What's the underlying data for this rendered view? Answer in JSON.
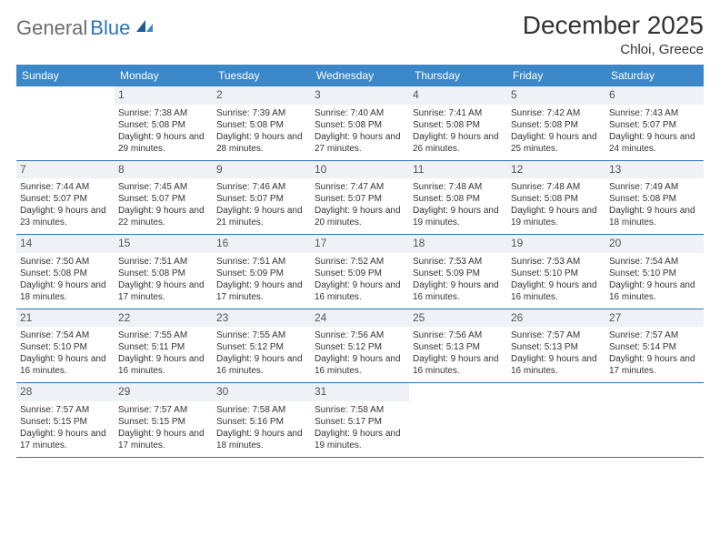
{
  "logo": {
    "part1": "General",
    "part2": "Blue"
  },
  "title": "December 2025",
  "location": "Chloi, Greece",
  "colors": {
    "header_bg": "#3b87c8",
    "header_text": "#ffffff",
    "daynum_bg": "#eef2f6",
    "rule": "#2f72b6",
    "logo_gray": "#6b6b6b",
    "logo_blue": "#2f72b6"
  },
  "weekdays": [
    "Sunday",
    "Monday",
    "Tuesday",
    "Wednesday",
    "Thursday",
    "Friday",
    "Saturday"
  ],
  "weeks": [
    [
      {
        "n": "",
        "sr": "",
        "ss": "",
        "dl": ""
      },
      {
        "n": "1",
        "sr": "Sunrise: 7:38 AM",
        "ss": "Sunset: 5:08 PM",
        "dl": "Daylight: 9 hours and 29 minutes."
      },
      {
        "n": "2",
        "sr": "Sunrise: 7:39 AM",
        "ss": "Sunset: 5:08 PM",
        "dl": "Daylight: 9 hours and 28 minutes."
      },
      {
        "n": "3",
        "sr": "Sunrise: 7:40 AM",
        "ss": "Sunset: 5:08 PM",
        "dl": "Daylight: 9 hours and 27 minutes."
      },
      {
        "n": "4",
        "sr": "Sunrise: 7:41 AM",
        "ss": "Sunset: 5:08 PM",
        "dl": "Daylight: 9 hours and 26 minutes."
      },
      {
        "n": "5",
        "sr": "Sunrise: 7:42 AM",
        "ss": "Sunset: 5:08 PM",
        "dl": "Daylight: 9 hours and 25 minutes."
      },
      {
        "n": "6",
        "sr": "Sunrise: 7:43 AM",
        "ss": "Sunset: 5:07 PM",
        "dl": "Daylight: 9 hours and 24 minutes."
      }
    ],
    [
      {
        "n": "7",
        "sr": "Sunrise: 7:44 AM",
        "ss": "Sunset: 5:07 PM",
        "dl": "Daylight: 9 hours and 23 minutes."
      },
      {
        "n": "8",
        "sr": "Sunrise: 7:45 AM",
        "ss": "Sunset: 5:07 PM",
        "dl": "Daylight: 9 hours and 22 minutes."
      },
      {
        "n": "9",
        "sr": "Sunrise: 7:46 AM",
        "ss": "Sunset: 5:07 PM",
        "dl": "Daylight: 9 hours and 21 minutes."
      },
      {
        "n": "10",
        "sr": "Sunrise: 7:47 AM",
        "ss": "Sunset: 5:07 PM",
        "dl": "Daylight: 9 hours and 20 minutes."
      },
      {
        "n": "11",
        "sr": "Sunrise: 7:48 AM",
        "ss": "Sunset: 5:08 PM",
        "dl": "Daylight: 9 hours and 19 minutes."
      },
      {
        "n": "12",
        "sr": "Sunrise: 7:48 AM",
        "ss": "Sunset: 5:08 PM",
        "dl": "Daylight: 9 hours and 19 minutes."
      },
      {
        "n": "13",
        "sr": "Sunrise: 7:49 AM",
        "ss": "Sunset: 5:08 PM",
        "dl": "Daylight: 9 hours and 18 minutes."
      }
    ],
    [
      {
        "n": "14",
        "sr": "Sunrise: 7:50 AM",
        "ss": "Sunset: 5:08 PM",
        "dl": "Daylight: 9 hours and 18 minutes."
      },
      {
        "n": "15",
        "sr": "Sunrise: 7:51 AM",
        "ss": "Sunset: 5:08 PM",
        "dl": "Daylight: 9 hours and 17 minutes."
      },
      {
        "n": "16",
        "sr": "Sunrise: 7:51 AM",
        "ss": "Sunset: 5:09 PM",
        "dl": "Daylight: 9 hours and 17 minutes."
      },
      {
        "n": "17",
        "sr": "Sunrise: 7:52 AM",
        "ss": "Sunset: 5:09 PM",
        "dl": "Daylight: 9 hours and 16 minutes."
      },
      {
        "n": "18",
        "sr": "Sunrise: 7:53 AM",
        "ss": "Sunset: 5:09 PM",
        "dl": "Daylight: 9 hours and 16 minutes."
      },
      {
        "n": "19",
        "sr": "Sunrise: 7:53 AM",
        "ss": "Sunset: 5:10 PM",
        "dl": "Daylight: 9 hours and 16 minutes."
      },
      {
        "n": "20",
        "sr": "Sunrise: 7:54 AM",
        "ss": "Sunset: 5:10 PM",
        "dl": "Daylight: 9 hours and 16 minutes."
      }
    ],
    [
      {
        "n": "21",
        "sr": "Sunrise: 7:54 AM",
        "ss": "Sunset: 5:10 PM",
        "dl": "Daylight: 9 hours and 16 minutes."
      },
      {
        "n": "22",
        "sr": "Sunrise: 7:55 AM",
        "ss": "Sunset: 5:11 PM",
        "dl": "Daylight: 9 hours and 16 minutes."
      },
      {
        "n": "23",
        "sr": "Sunrise: 7:55 AM",
        "ss": "Sunset: 5:12 PM",
        "dl": "Daylight: 9 hours and 16 minutes."
      },
      {
        "n": "24",
        "sr": "Sunrise: 7:56 AM",
        "ss": "Sunset: 5:12 PM",
        "dl": "Daylight: 9 hours and 16 minutes."
      },
      {
        "n": "25",
        "sr": "Sunrise: 7:56 AM",
        "ss": "Sunset: 5:13 PM",
        "dl": "Daylight: 9 hours and 16 minutes."
      },
      {
        "n": "26",
        "sr": "Sunrise: 7:57 AM",
        "ss": "Sunset: 5:13 PM",
        "dl": "Daylight: 9 hours and 16 minutes."
      },
      {
        "n": "27",
        "sr": "Sunrise: 7:57 AM",
        "ss": "Sunset: 5:14 PM",
        "dl": "Daylight: 9 hours and 17 minutes."
      }
    ],
    [
      {
        "n": "28",
        "sr": "Sunrise: 7:57 AM",
        "ss": "Sunset: 5:15 PM",
        "dl": "Daylight: 9 hours and 17 minutes."
      },
      {
        "n": "29",
        "sr": "Sunrise: 7:57 AM",
        "ss": "Sunset: 5:15 PM",
        "dl": "Daylight: 9 hours and 17 minutes."
      },
      {
        "n": "30",
        "sr": "Sunrise: 7:58 AM",
        "ss": "Sunset: 5:16 PM",
        "dl": "Daylight: 9 hours and 18 minutes."
      },
      {
        "n": "31",
        "sr": "Sunrise: 7:58 AM",
        "ss": "Sunset: 5:17 PM",
        "dl": "Daylight: 9 hours and 19 minutes."
      },
      {
        "n": "",
        "sr": "",
        "ss": "",
        "dl": ""
      },
      {
        "n": "",
        "sr": "",
        "ss": "",
        "dl": ""
      },
      {
        "n": "",
        "sr": "",
        "ss": "",
        "dl": ""
      }
    ]
  ]
}
